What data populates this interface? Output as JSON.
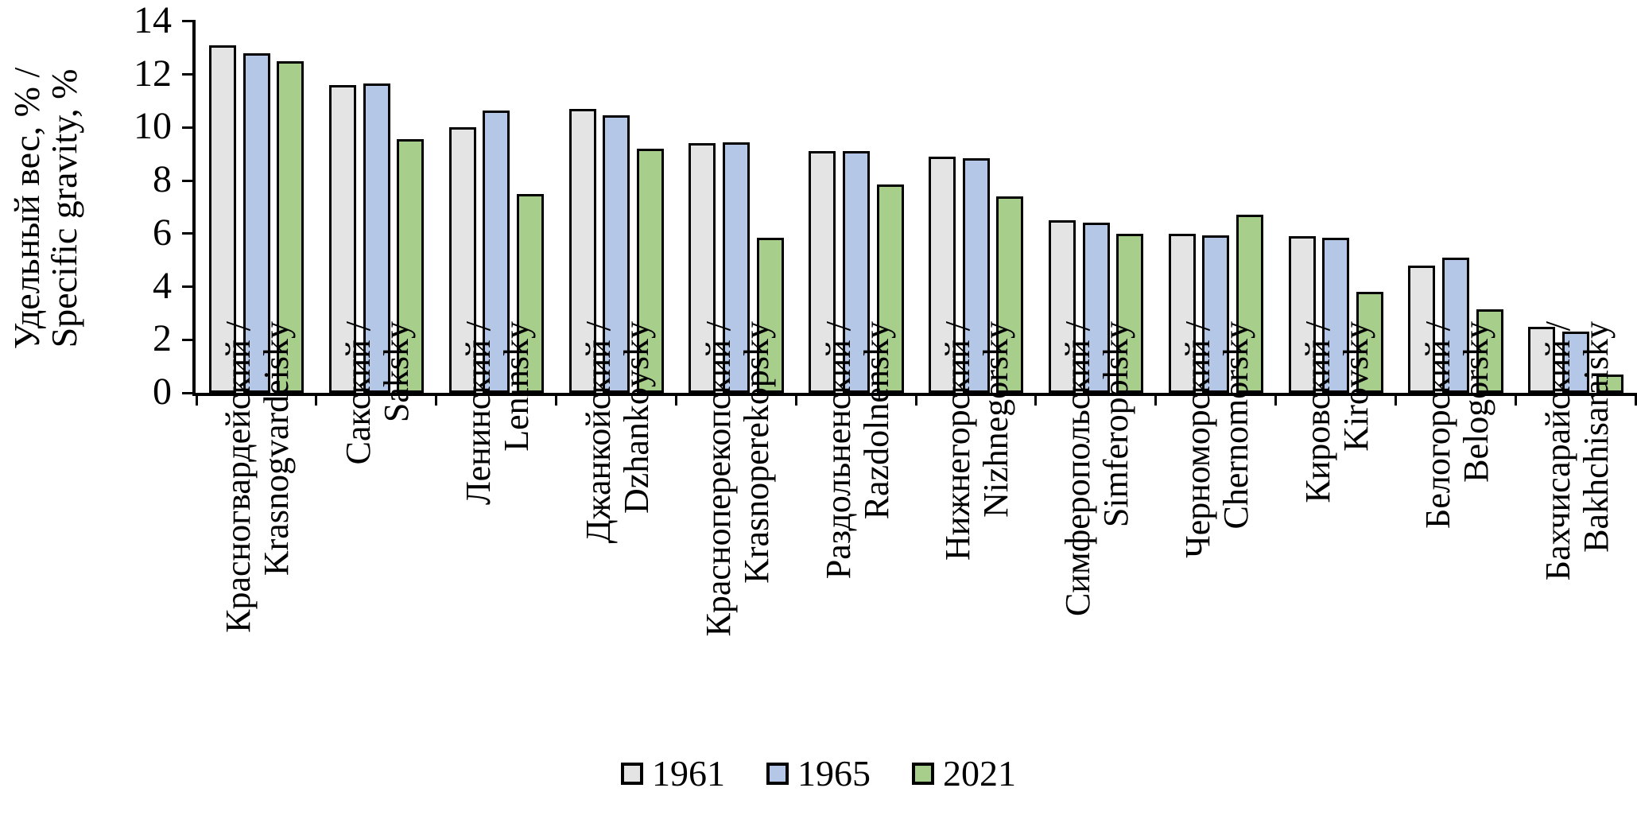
{
  "chart_data": {
    "type": "bar",
    "title": "",
    "ylabel_lines": [
      "Удельный вес, % /",
      "Specific gravity, %"
    ],
    "xlabel": "",
    "ylim": [
      0,
      14
    ],
    "yticks": [
      0,
      2,
      4,
      6,
      8,
      10,
      12,
      14
    ],
    "grid": false,
    "legend_position": "bottom",
    "background_color": "#ffffff",
    "bar_outline_color": "#000000",
    "categories": [
      {
        "label_ru": "Красногвардейский /",
        "label_en": "Krasnogvardeisky"
      },
      {
        "label_ru": "Сакский /",
        "label_en": "Saksky"
      },
      {
        "label_ru": "Ленинский /",
        "label_en": "Leninsky"
      },
      {
        "label_ru": "Джанкойский /",
        "label_en": "Dzhankoysky"
      },
      {
        "label_ru": "Красноперекопский /",
        "label_en": "Krasnoperekopsky"
      },
      {
        "label_ru": "Раздольненский /",
        "label_en": "Razdolnensky"
      },
      {
        "label_ru": "Нижнегорский /",
        "label_en": "Nizhnegorsky"
      },
      {
        "label_ru": "Симферопольский /",
        "label_en": "Simferopolsky"
      },
      {
        "label_ru": "Черноморский /",
        "label_en": "Chernomorsky"
      },
      {
        "label_ru": "Кировский /",
        "label_en": "Kirovsky"
      },
      {
        "label_ru": "Белогорский /",
        "label_en": "Belogorsky"
      },
      {
        "label_ru": "Бахчисарайский /",
        "label_en": "Bakhchisaraisky"
      }
    ],
    "series": [
      {
        "name": "1961",
        "color": "#e4e4e4",
        "values": [
          13.1,
          11.6,
          10.0,
          10.7,
          9.4,
          9.1,
          8.9,
          6.5,
          6.0,
          5.9,
          4.8,
          2.5
        ]
      },
      {
        "name": "1965",
        "color": "#b4c7e7",
        "values": [
          12.8,
          11.65,
          10.65,
          10.45,
          9.45,
          9.1,
          8.85,
          6.4,
          5.95,
          5.85,
          5.1,
          2.3
        ]
      },
      {
        "name": "2021",
        "color": "#a8ce8c",
        "values": [
          12.5,
          9.55,
          7.5,
          9.2,
          5.85,
          7.85,
          7.4,
          6.0,
          6.7,
          3.8,
          3.15,
          0.7
        ]
      }
    ]
  }
}
